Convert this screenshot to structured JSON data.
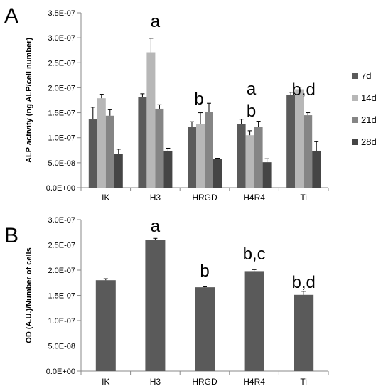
{
  "chart_data": [
    {
      "panel_label": "A",
      "type": "bar",
      "title": "",
      "xlabel": "",
      "ylabel": "ALP activity (ng ALP/cell number)",
      "ylim": [
        0,
        3.5e-07
      ],
      "yticks": [
        0,
        5e-08,
        1e-07,
        1.5e-07,
        2e-07,
        2.5e-07,
        3e-07,
        3.5e-07
      ],
      "ytick_labels": [
        "0.0E+00",
        "5.0E-08",
        "1.0E-07",
        "1.5E-07",
        "2.0E-07",
        "2.5E-07",
        "3.0E-07",
        "3.5E-07"
      ],
      "categories": [
        "IK",
        "H3",
        "HRGD",
        "H4R4",
        "Ti"
      ],
      "grid": false,
      "legend_position": "right",
      "series": [
        {
          "name": "7d",
          "color": "#5a5a5a",
          "values": [
            1.37e-07,
            1.81e-07,
            1.22e-07,
            1.28e-07,
            1.86e-07
          ],
          "errors": [
            2.4e-08,
            7e-09,
            1e-08,
            9e-09,
            5e-09
          ]
        },
        {
          "name": "14d",
          "color": "#b7b7b7",
          "values": [
            1.79e-07,
            2.71e-07,
            1.27e-07,
            1.05e-07,
            1.97e-07
          ],
          "errors": [
            8e-09,
            2.8e-08,
            2.3e-08,
            9e-09,
            4e-09
          ]
        },
        {
          "name": "21d",
          "color": "#858585",
          "values": [
            1.44e-07,
            1.58e-07,
            1.51e-07,
            1.21e-07,
            1.45e-07
          ],
          "errors": [
            1.2e-08,
            8e-09,
            1.8e-08,
            1.2e-08,
            5e-09
          ]
        },
        {
          "name": "28d",
          "color": "#454545",
          "values": [
            6.7e-08,
            7.4e-08,
            5.7e-08,
            5.1e-08,
            7.4e-08
          ],
          "errors": [
            1e-08,
            5e-09,
            2e-09,
            7e-09,
            1.8e-08
          ]
        }
      ],
      "annotations": [
        {
          "category": "H3",
          "series": "14d",
          "text": "a"
        },
        {
          "category": "HRGD",
          "series": "21d",
          "text": "b"
        },
        {
          "category": "H4R4",
          "series": "14d",
          "text": "a"
        },
        {
          "category": "H4R4",
          "series": "14d",
          "text": "b"
        },
        {
          "category": "Ti",
          "series": "14d",
          "text": "b,d"
        }
      ]
    },
    {
      "panel_label": "B",
      "type": "bar",
      "title": "",
      "xlabel": "",
      "ylabel": "OD (A.U.)/Number of cells",
      "ylim": [
        0,
        3e-07
      ],
      "yticks": [
        0,
        5e-08,
        1e-07,
        1.5e-07,
        2e-07,
        2.5e-07,
        3e-07
      ],
      "ytick_labels": [
        "0.0E+00",
        "5.0E-08",
        "1.0E-07",
        "1.5E-07",
        "2.0E-07",
        "2.5E-07",
        "3.0E-07"
      ],
      "categories": [
        "IK",
        "H3",
        "HRGD",
        "H4R4",
        "Ti"
      ],
      "grid": false,
      "series": [
        {
          "color": "#5a5a5a",
          "values": [
            1.8e-07,
            2.6e-07,
            1.66e-07,
            1.98e-07,
            1.51e-07
          ],
          "errors": [
            3e-09,
            3e-09,
            1e-09,
            3e-09,
            7e-09
          ]
        }
      ],
      "annotations": [
        {
          "category": "H3",
          "text": "a"
        },
        {
          "category": "HRGD",
          "text": "b"
        },
        {
          "category": "H4R4",
          "text": "b,c"
        },
        {
          "category": "Ti",
          "text": "b,d"
        }
      ]
    }
  ]
}
